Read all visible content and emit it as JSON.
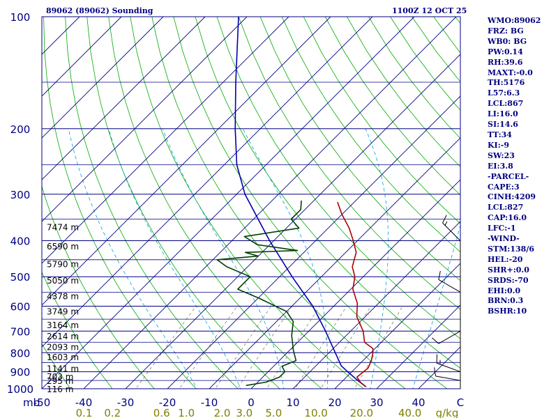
{
  "header": {
    "station": "89062 (89062) Sounding",
    "datetime": "1100Z 12 OCT 25"
  },
  "indices": [
    "WMO:89062",
    "FRZ: BG",
    "WB0: BG",
    "PW:0.14",
    "RH:39.6",
    "MAXT:-0.0",
    "TH:5176",
    "L57:6.3",
    "LCL:867",
    "LI:16.0",
    "SI:14.6",
    "TT:34",
    "KI:-9",
    "SW:23",
    "EI:3.8",
    "-PARCEL-",
    "CAPE:3",
    "CINH:4209",
    "LCL:827",
    "CAP:16.0",
    "LFC:-1",
    "-WIND-",
    "STM:138/6",
    "HEL:-20",
    "SHR+:0.0",
    "SRDS:-70",
    "EHI:0.0",
    "BRN:0.3",
    "BSHR:10"
  ],
  "colors": {
    "frame": "#000080",
    "isobar": "#000080",
    "isotherm": "#000080",
    "dry_adiabat": "#00aa00",
    "moist_adiabat": "#00a0e0",
    "mixing_ratio": "#808060",
    "temperature": "#aa0000",
    "dewpoint": "#004000",
    "parcel": "#0000aa",
    "mixing_label": "#808000",
    "wind_barb": "#000000"
  },
  "chart_data": {
    "type": "skew-t",
    "title": "89062 (89062) Sounding",
    "pressure_axis_label": "mb",
    "pressure_range_mb": [
      1000,
      100
    ],
    "temperature_range_c": [
      -50,
      50
    ],
    "pressure_ticks": [
      {
        "p": 100,
        "label": "100"
      },
      {
        "p": 200,
        "label": "200"
      },
      {
        "p": 300,
        "label": "300"
      },
      {
        "p": 400,
        "label": "400"
      },
      {
        "p": 500,
        "label": "500"
      },
      {
        "p": 600,
        "label": "600"
      },
      {
        "p": 700,
        "label": "700"
      },
      {
        "p": 800,
        "label": "800"
      },
      {
        "p": 900,
        "label": "900"
      },
      {
        "p": 1000,
        "label": "1000"
      }
    ],
    "temperature_ticks": [
      {
        "t": -50,
        "label": "-50"
      },
      {
        "t": -40,
        "label": "-40"
      },
      {
        "t": -30,
        "label": "-30"
      },
      {
        "t": -20,
        "label": "-20"
      },
      {
        "t": -10,
        "label": "-10"
      },
      {
        "t": 0,
        "label": "0"
      },
      {
        "t": 10,
        "label": "10"
      },
      {
        "t": 20,
        "label": "20"
      },
      {
        "t": 30,
        "label": "30"
      },
      {
        "t": 40,
        "label": "40"
      },
      {
        "t": 50,
        "label": "C"
      }
    ],
    "mixing_ratio_labels": [
      {
        "w": 0.1,
        "label": "0.1"
      },
      {
        "w": 0.2,
        "label": "0.2"
      },
      {
        "w": 0.6,
        "label": "0.6"
      },
      {
        "w": 1.0,
        "label": "1.0"
      },
      {
        "w": 2.0,
        "label": "2.0"
      },
      {
        "w": 3.0,
        "label": "3.0"
      },
      {
        "w": 5.0,
        "label": "5.0"
      },
      {
        "w": 10.0,
        "label": "10.0"
      },
      {
        "w": 20.0,
        "label": "20.0"
      },
      {
        "w": 40.0,
        "label": "40.0"
      }
    ],
    "mixing_ratio_unit": "g/kg",
    "height_labels": [
      {
        "p": 1000,
        "label": "116 m"
      },
      {
        "p": 950,
        "label": "295 m"
      },
      {
        "p": 925,
        "label": "703 m"
      },
      {
        "p": 880,
        "label": "1141 m"
      },
      {
        "p": 820,
        "label": "1603 m"
      },
      {
        "p": 770,
        "label": "2093 m"
      },
      {
        "p": 720,
        "label": "2614 m"
      },
      {
        "p": 672,
        "label": "3164 m"
      },
      {
        "p": 618,
        "label": "3749 m"
      },
      {
        "p": 562,
        "label": "4378 m"
      },
      {
        "p": 510,
        "label": "5050 m"
      },
      {
        "p": 461,
        "label": "5790 m"
      },
      {
        "p": 413,
        "label": "6590 m"
      },
      {
        "p": 367,
        "label": "7474 m"
      }
    ],
    "temperature_profile": [
      {
        "p": 988,
        "t": 27.0
      },
      {
        "p": 960,
        "t": 24.5
      },
      {
        "p": 930,
        "t": 22.5
      },
      {
        "p": 880,
        "t": 23.0
      },
      {
        "p": 840,
        "t": 22.0
      },
      {
        "p": 800,
        "t": 20.5
      },
      {
        "p": 780,
        "t": 19.5
      },
      {
        "p": 750,
        "t": 16.0
      },
      {
        "p": 700,
        "t": 13.0
      },
      {
        "p": 640,
        "t": 8.0
      },
      {
        "p": 590,
        "t": 5.0
      },
      {
        "p": 540,
        "t": 0.5
      },
      {
        "p": 500,
        "t": -2.0
      },
      {
        "p": 470,
        "t": -5.0
      },
      {
        "p": 430,
        "t": -7.5
      },
      {
        "p": 400,
        "t": -11.0
      },
      {
        "p": 370,
        "t": -15.0
      },
      {
        "p": 340,
        "t": -20.0
      },
      {
        "p": 315,
        "t": -24.0
      }
    ],
    "dewpoint_profile": [
      {
        "p": 980,
        "t": -2.0
      },
      {
        "p": 960,
        "t": 2.0
      },
      {
        "p": 930,
        "t": 4.0
      },
      {
        "p": 900,
        "t": 4.0
      },
      {
        "p": 870,
        "t": 2.0
      },
      {
        "p": 840,
        "t": 4.0
      },
      {
        "p": 790,
        "t": 1.0
      },
      {
        "p": 720,
        "t": -3.0
      },
      {
        "p": 660,
        "t": -6.0
      },
      {
        "p": 620,
        "t": -10.0
      },
      {
        "p": 570,
        "t": -20.0
      },
      {
        "p": 540,
        "t": -27.0
      },
      {
        "p": 500,
        "t": -27.0
      },
      {
        "p": 470,
        "t": -35.0
      },
      {
        "p": 450,
        "t": -39.0
      },
      {
        "p": 440,
        "t": -30.0
      },
      {
        "p": 430,
        "t": -34.0
      },
      {
        "p": 425,
        "t": -22.0
      },
      {
        "p": 410,
        "t": -33.0
      },
      {
        "p": 390,
        "t": -38.0
      },
      {
        "p": 370,
        "t": -27.0
      },
      {
        "p": 350,
        "t": -31.0
      },
      {
        "p": 330,
        "t": -31.0
      },
      {
        "p": 312,
        "t": -33.0
      }
    ],
    "parcel_profile": [
      {
        "p": 988,
        "t": 27.0
      },
      {
        "p": 950,
        "t": 23.5
      },
      {
        "p": 900,
        "t": 19.0
      },
      {
        "p": 867,
        "t": 16.0
      },
      {
        "p": 800,
        "t": 11.5
      },
      {
        "p": 700,
        "t": 4.0
      },
      {
        "p": 600,
        "t": -5.0
      },
      {
        "p": 500,
        "t": -17.0
      },
      {
        "p": 400,
        "t": -31.0
      },
      {
        "p": 300,
        "t": -48.0
      },
      {
        "p": 250,
        "t": -57.0
      },
      {
        "p": 200,
        "t": -66.0
      },
      {
        "p": 150,
        "t": -77.0
      },
      {
        "p": 100,
        "t": -92.0
      }
    ],
    "wind_barbs": [
      {
        "p": 950,
        "dir": 280,
        "kt": 10
      },
      {
        "p": 900,
        "dir": 290,
        "kt": 15
      },
      {
        "p": 700,
        "dir": 240,
        "kt": 10
      },
      {
        "p": 550,
        "dir": 300,
        "kt": 10
      },
      {
        "p": 400,
        "dir": 315,
        "kt": 15
      }
    ]
  }
}
